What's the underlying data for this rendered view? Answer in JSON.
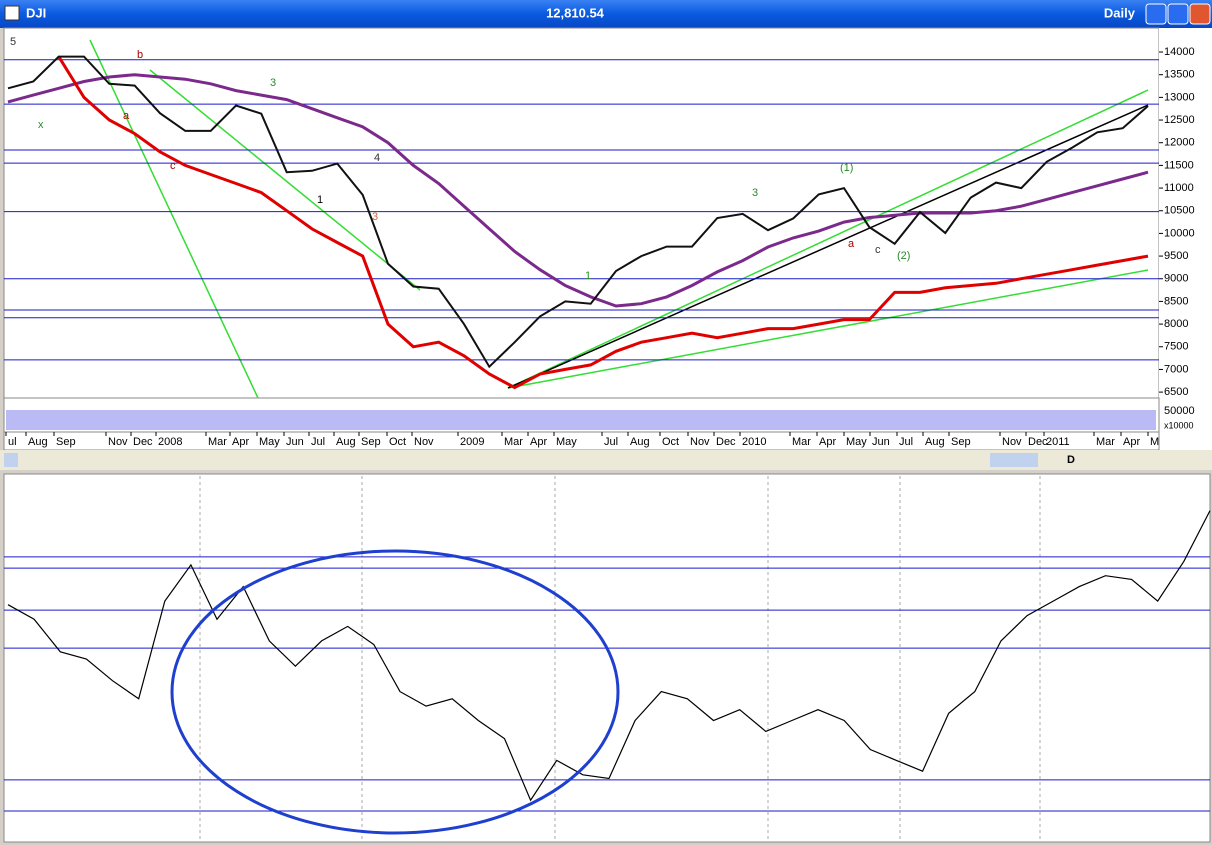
{
  "window": {
    "symbol": "DJI",
    "price": "12,810.54",
    "period": "Daily"
  },
  "toolbar": {
    "d_button": "D"
  },
  "volume": {
    "tick": "50000",
    "unit": "x10000"
  },
  "chart_data": [
    {
      "type": "line",
      "x_labels": [
        "ul",
        "Aug",
        "Sep",
        "Nov",
        "Dec",
        "2008",
        "Mar",
        "Apr",
        "May",
        "Jun",
        "Jul",
        "Aug",
        "Sep",
        "Oct",
        "Nov",
        "2009",
        "Mar",
        "Apr",
        "May",
        "Jul",
        "Aug",
        "Oct",
        "Nov",
        "Dec",
        "2010",
        "Mar",
        "Apr",
        "May",
        "Jun",
        "Jul",
        "Aug",
        "Sep",
        "Nov",
        "Dec",
        "2011",
        "Mar",
        "Apr",
        "M"
      ],
      "ylim": [
        6370,
        14530
      ],
      "yticks": [
        6500,
        7000,
        7500,
        8000,
        8500,
        9000,
        9500,
        10000,
        10500,
        11000,
        11500,
        12000,
        12500,
        13000,
        13500,
        14000
      ],
      "hlines": [
        13830,
        12850,
        11840,
        11550,
        10480,
        9000,
        8310,
        8140,
        7210
      ],
      "annotations": [
        "5",
        "x",
        "a",
        "b",
        "c",
        "3",
        "1",
        "3",
        "4",
        "1",
        "(1)",
        "a",
        "c",
        "(2)",
        "3"
      ],
      "series": [
        {
          "color": "#7b2a8c",
          "values": [
            12900,
            13050,
            13200,
            13350,
            13450,
            13500,
            13450,
            13400,
            13300,
            13150,
            13050,
            12950,
            12750,
            12550,
            12350,
            12000,
            11500,
            11100,
            10600,
            10100,
            9600,
            9200,
            8850,
            8600,
            8400,
            8450,
            8600,
            8850,
            9150,
            9400,
            9700,
            9900,
            10050,
            10250,
            10350,
            10400,
            10450,
            10450,
            10450,
            10500,
            10600,
            10750,
            10900,
            11050,
            11200,
            11350
          ]
        },
        {
          "color": "#e00000",
          "values": [
            null,
            null,
            13900,
            13000,
            12500,
            12200,
            11800,
            11500,
            11300,
            11100,
            10900,
            10500,
            10100,
            9800,
            9500,
            8000,
            7500,
            7600,
            7300,
            6900,
            6600,
            6900,
            7000,
            7100,
            7400,
            7600,
            7700,
            7800,
            7700,
            7800,
            7900,
            7900,
            8000,
            8100,
            8100,
            8700,
            8700,
            8800,
            8850,
            8900,
            9000,
            9100,
            9200,
            9300,
            9400,
            9500
          ]
        },
        {
          "color": "#111111",
          "values": [
            13200,
            13350,
            13900,
            13900,
            13300,
            13260,
            12650,
            12260,
            12260,
            12820,
            12640,
            11350,
            11380,
            11540,
            10850,
            9330,
            8830,
            8780,
            8000,
            7060,
            7600,
            8170,
            8500,
            8450,
            9170,
            9500,
            9710,
            9710,
            10340,
            10430,
            10070,
            10330,
            10860,
            11000,
            10140,
            9770,
            10470,
            10010,
            10790,
            11120,
            11000,
            11580,
            11890,
            12230,
            12320,
            12810
          ]
        }
      ]
    },
    {
      "type": "line",
      "ylim": [
        0,
        100
      ],
      "hlines": [
        78.2,
        75.1,
        63.5,
        53.0,
        16.6,
        8.0
      ],
      "series": [
        {
          "color": "#000000",
          "values": [
            65,
            61,
            52,
            50,
            44,
            39,
            66,
            76,
            61,
            70,
            55,
            48,
            55,
            59,
            54,
            41,
            37,
            39,
            33,
            28,
            11,
            22,
            18,
            17,
            33,
            41,
            39,
            33,
            36,
            30,
            33,
            36,
            33,
            25,
            22,
            19,
            35,
            41,
            55,
            62,
            66,
            70,
            73,
            72,
            66,
            77,
            91
          ]
        }
      ]
    }
  ]
}
